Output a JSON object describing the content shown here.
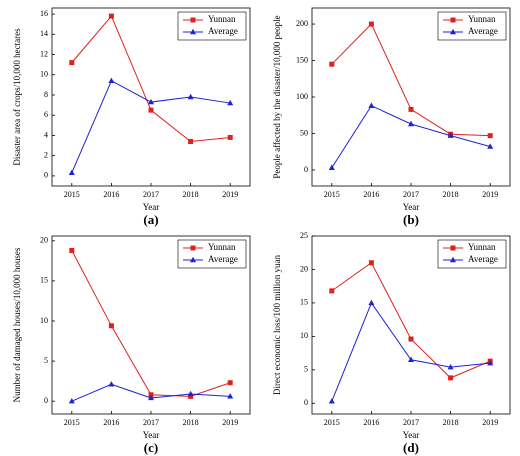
{
  "chart_data": [
    {
      "type": "line",
      "label": "(a)",
      "x_label": "Year",
      "y_label": "Disaster area of crops/10,000 hectares",
      "categories": [
        "2015",
        "2016",
        "2017",
        "2018",
        "2019"
      ],
      "series": [
        {
          "name": "Yunnan",
          "color": "#e0201c",
          "marker": "square",
          "values": [
            11.2,
            15.8,
            6.5,
            3.4,
            3.8
          ]
        },
        {
          "name": "Average",
          "color": "#1f22d0",
          "marker": "triangle",
          "values": [
            0.3,
            9.4,
            7.3,
            7.8,
            7.2
          ]
        }
      ],
      "ylim": [
        -1,
        16.6
      ],
      "yticks": [
        0,
        2,
        4,
        6,
        8,
        10,
        12,
        14,
        16
      ],
      "legend": "upper right"
    },
    {
      "type": "line",
      "label": "(b)",
      "x_label": "Year",
      "y_label": "People affected by the disaster/10,000 people",
      "categories": [
        "2015",
        "2016",
        "2017",
        "2018",
        "2019"
      ],
      "series": [
        {
          "name": "Yunnan",
          "color": "#e0201c",
          "marker": "square",
          "values": [
            145,
            200,
            83,
            49,
            47
          ]
        },
        {
          "name": "Average",
          "color": "#1f22d0",
          "marker": "triangle",
          "values": [
            3,
            88,
            63,
            47,
            32
          ]
        }
      ],
      "ylim": [
        -22,
        222
      ],
      "yticks": [
        0,
        50,
        100,
        150,
        200
      ],
      "legend": "upper right"
    },
    {
      "type": "line",
      "label": "(c)",
      "x_label": "Year",
      "y_label": "Number of damaged houses/10,000 houses",
      "categories": [
        "2015",
        "2016",
        "2017",
        "2018",
        "2019"
      ],
      "series": [
        {
          "name": "Yunnan",
          "color": "#e0201c",
          "marker": "square",
          "values": [
            18.8,
            9.4,
            0.8,
            0.6,
            2.3
          ]
        },
        {
          "name": "Average",
          "color": "#1f22d0",
          "marker": "triangle",
          "values": [
            0,
            2.1,
            0.4,
            0.9,
            0.6
          ]
        }
      ],
      "ylim": [
        -1.6,
        20.6
      ],
      "yticks": [
        0,
        5,
        10,
        15,
        20
      ],
      "legend": "upper right"
    },
    {
      "type": "line",
      "label": "(d)",
      "x_label": "Year",
      "y_label": "Direct economic loss/100 million yuan",
      "categories": [
        "2015",
        "2016",
        "2017",
        "2018",
        "2019"
      ],
      "series": [
        {
          "name": "Yunnan",
          "color": "#e0201c",
          "marker": "square",
          "values": [
            16.8,
            21,
            9.6,
            3.8,
            6.3
          ]
        },
        {
          "name": "Average",
          "color": "#1f22d0",
          "marker": "triangle",
          "values": [
            0.3,
            15,
            6.5,
            5.4,
            6
          ]
        }
      ],
      "ylim": [
        -1.6,
        25
      ],
      "yticks": [
        0,
        5,
        10,
        15,
        20,
        25
      ],
      "legend": "upper right"
    }
  ]
}
